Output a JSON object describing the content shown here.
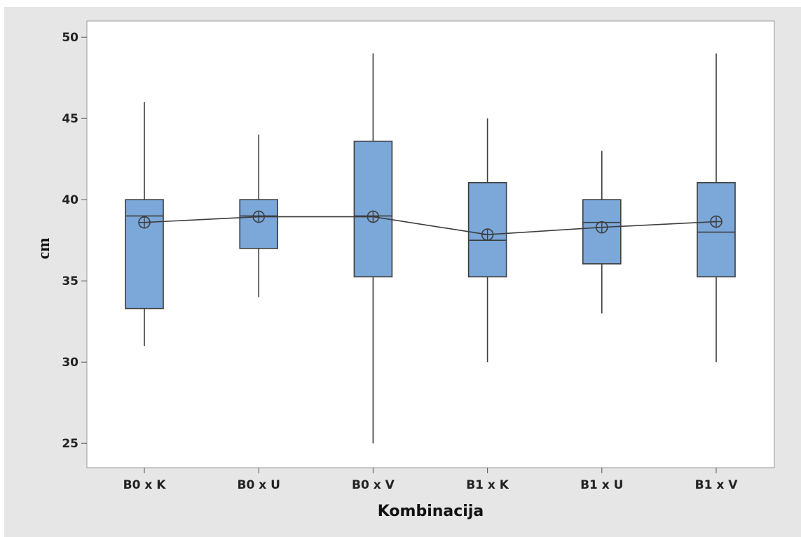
{
  "chart_data": {
    "type": "box",
    "title": "",
    "xlabel": "Kombinacija",
    "ylabel": "cm",
    "ylim": [
      23.5,
      51
    ],
    "yticks": [
      25,
      30,
      35,
      40,
      45,
      50
    ],
    "grid": false,
    "colors": {
      "box_fill": "#7ba7d9",
      "box_stroke": "#3d3d3d",
      "mean_line": "#3d3d3d",
      "panel_bg": "#ffffff",
      "outer_bg": "#e6e6e6"
    },
    "categories": [
      "B0 x K",
      "B0 x U",
      "B0 x V",
      "B1 x K",
      "B1 x U",
      "B1 x V"
    ],
    "boxes": [
      {
        "category": "B0 x K",
        "whisker_low": 31,
        "q1": 33.3,
        "median": 39,
        "q3": 40,
        "whisker_high": 46,
        "mean": 38.6
      },
      {
        "category": "B0 x U",
        "whisker_low": 34,
        "q1": 37,
        "median": 39,
        "q3": 40,
        "whisker_high": 44,
        "mean": 38.95
      },
      {
        "category": "B0 x V",
        "whisker_low": 25,
        "q1": 35.25,
        "median": 39,
        "q3": 43.6,
        "whisker_high": 49,
        "mean": 38.95
      },
      {
        "category": "B1 x K",
        "whisker_low": 30,
        "q1": 35.25,
        "median": 37.5,
        "q3": 41.05,
        "whisker_high": 45,
        "mean": 37.85
      },
      {
        "category": "B1 x U",
        "whisker_low": 33,
        "q1": 36.05,
        "median": 38.6,
        "q3": 40,
        "whisker_high": 43,
        "mean": 38.3
      },
      {
        "category": "B1 x V",
        "whisker_low": 30,
        "q1": 35.25,
        "median": 38,
        "q3": 41.05,
        "whisker_high": 49,
        "mean": 38.65
      }
    ],
    "mean_connect_line": true,
    "mean_marker": "circle-plus"
  }
}
